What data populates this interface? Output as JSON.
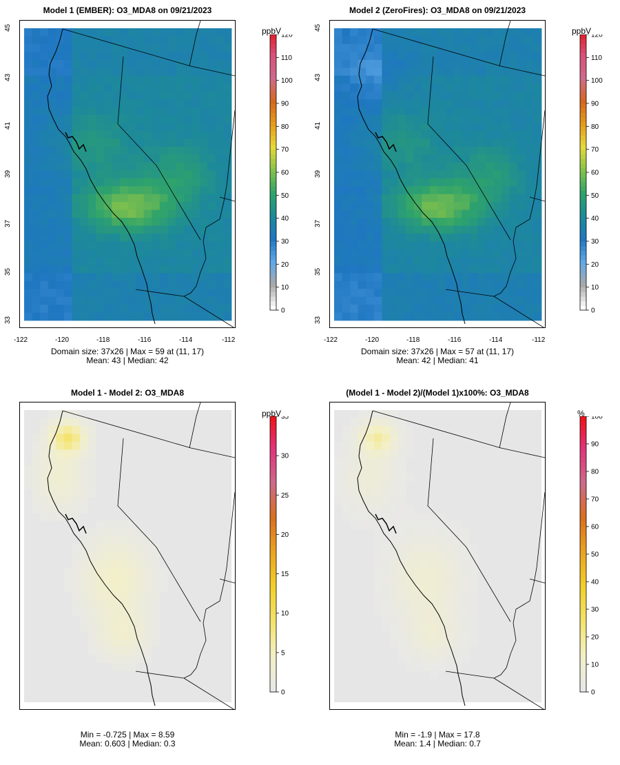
{
  "panels": [
    {
      "title": "Model 1 (EMBER): O3_MDA8 on 09/21/2023",
      "stats_line1": "Domain size: 37x26 | Max = 59 at (11, 17)",
      "stats_line2": "Mean: 43 |  Median: 42",
      "colorbar": {
        "unit": "ppbV",
        "ticks": [
          "0",
          "10",
          "20",
          "30",
          "40",
          "50",
          "60",
          "70",
          "80",
          "90",
          "100",
          "110",
          "120"
        ],
        "min": 0,
        "max": 120
      },
      "x_ticks": [
        "-122",
        "-120",
        "-118",
        "-116",
        "-114",
        "-112"
      ],
      "y_ticks": [
        "33",
        "35",
        "37",
        "39",
        "41",
        "43",
        "45"
      ],
      "value_range": [
        0,
        120
      ],
      "mean_value": 43,
      "max_value": 59
    },
    {
      "title": "Model 2 (ZeroFires): O3_MDA8 on 09/21/2023",
      "stats_line1": "Domain size: 37x26 | Max = 57 at (11, 17)",
      "stats_line2": "Mean: 42 |  Median: 41",
      "colorbar": {
        "unit": "ppbV",
        "ticks": [
          "0",
          "10",
          "20",
          "30",
          "40",
          "50",
          "60",
          "70",
          "80",
          "90",
          "100",
          "110",
          "120"
        ],
        "min": 0,
        "max": 120
      },
      "x_ticks": [
        "-122",
        "-120",
        "-118",
        "-116",
        "-114",
        "-112"
      ],
      "y_ticks": [
        "33",
        "35",
        "37",
        "39",
        "41",
        "43",
        "45"
      ],
      "value_range": [
        0,
        120
      ],
      "mean_value": 42,
      "max_value": 57
    },
    {
      "title": "Model 1 - Model 2: O3_MDA8",
      "stats_line1": "Min = -0.725 | Max = 8.59",
      "stats_line2": "Mean: 0.603 |  Median: 0.3",
      "colorbar": {
        "unit": "ppbV",
        "ticks": [
          "0",
          "5",
          "10",
          "15",
          "20",
          "25",
          "30",
          "35"
        ],
        "min": 0,
        "max": 35
      }
    },
    {
      "title": "(Model 1 - Model 2)/(Model 1)x100%: O3_MDA8",
      "stats_line1": "Min = -1.9 | Max = 17.8",
      "stats_line2": "Mean: 1.4 |  Median: 0.7",
      "colorbar": {
        "unit": "%",
        "ticks": [
          "0",
          "10",
          "20",
          "30",
          "40",
          "50",
          "60",
          "70",
          "80",
          "90",
          "100"
        ],
        "min": 0,
        "max": 100
      }
    }
  ],
  "colors": {
    "ozone_scale": [
      "#ffffff",
      "#a9a9a9",
      "#5fa9e8",
      "#1f77c1",
      "#1d8a99",
      "#2fa36b",
      "#84c24a",
      "#e6d93a",
      "#e69c1a",
      "#d4691e",
      "#cf6a8b",
      "#d8527a",
      "#e01b2a"
    ],
    "diff_scale": [
      "#e8e8e8",
      "#f3f0c7",
      "#f4e36b",
      "#f2d02a",
      "#eba421",
      "#d9701f",
      "#cc6a8a",
      "#e0347a",
      "#f01010"
    ],
    "map_background_diff": "#e6e6e6"
  }
}
